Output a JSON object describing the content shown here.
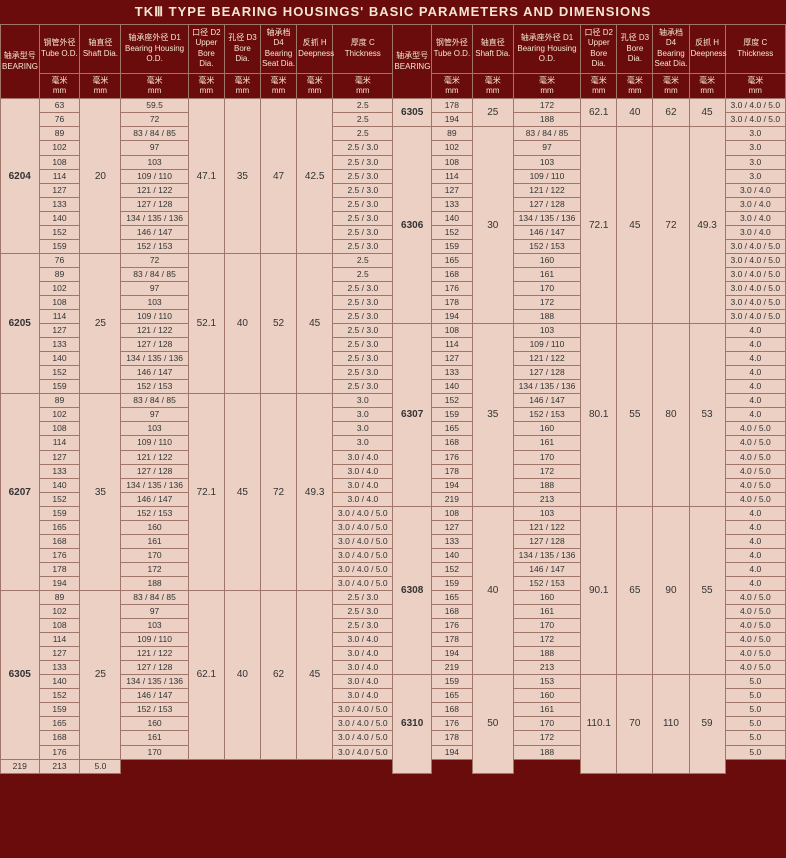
{
  "title": "TKⅢ TYPE BEARING HOUSINGS' BASIC PARAMETERS AND DIMENSIONS",
  "headers": [
    {
      "zh": "轴承型号",
      "en": "BEARING",
      "unit": ""
    },
    {
      "zh": "钢管外径",
      "en": "Tube O.D.",
      "unit": "毫米\nmm"
    },
    {
      "zh": "轴直径",
      "en": "Shaft Dia.",
      "unit": "毫米\nmm"
    },
    {
      "zh": "轴承座外径 D1",
      "en": "Bearing Housing O.D.",
      "unit": "毫米\nmm"
    },
    {
      "zh": "口径 D2",
      "en": "Upper Bore Dia.",
      "unit": "毫米\nmm"
    },
    {
      "zh": "孔径 D3",
      "en": "Bore Dia.",
      "unit": "毫米\nmm"
    },
    {
      "zh": "轴承档 D4",
      "en": "Bearing Seat Dia.",
      "unit": "毫米\nmm"
    },
    {
      "zh": "反抓 H",
      "en": "Deepness",
      "unit": "毫米\nmm"
    },
    {
      "zh": "厚度 C",
      "en": "Thickness",
      "unit": "毫米\nmm"
    }
  ],
  "left": [
    {
      "bearing": "6204",
      "shaft": "20",
      "d2": "47.1",
      "d3": "35",
      "d4": "47",
      "h": "42.5",
      "rows": [
        {
          "tube": "63",
          "d1": "59.5",
          "c": "2.5"
        },
        {
          "tube": "76",
          "d1": "72",
          "c": "2.5"
        },
        {
          "tube": "89",
          "d1": "83 / 84 / 85",
          "c": "2.5"
        },
        {
          "tube": "102",
          "d1": "97",
          "c": "2.5 / 3.0"
        },
        {
          "tube": "108",
          "d1": "103",
          "c": "2.5 / 3.0"
        },
        {
          "tube": "114",
          "d1": "109 / 110",
          "c": "2.5 / 3.0"
        },
        {
          "tube": "127",
          "d1": "121 / 122",
          "c": "2.5 / 3.0"
        },
        {
          "tube": "133",
          "d1": "127 / 128",
          "c": "2.5 / 3.0"
        },
        {
          "tube": "140",
          "d1": "134 / 135 / 136",
          "c": "2.5 / 3.0"
        },
        {
          "tube": "152",
          "d1": "146 / 147",
          "c": "2.5 / 3.0"
        },
        {
          "tube": "159",
          "d1": "152 / 153",
          "c": "2.5 / 3.0"
        }
      ]
    },
    {
      "bearing": "6205",
      "shaft": "25",
      "d2": "52.1",
      "d3": "40",
      "d4": "52",
      "h": "45",
      "rows": [
        {
          "tube": "76",
          "d1": "72",
          "c": "2.5"
        },
        {
          "tube": "89",
          "d1": "83 / 84 / 85",
          "c": "2.5"
        },
        {
          "tube": "102",
          "d1": "97",
          "c": "2.5 / 3.0"
        },
        {
          "tube": "108",
          "d1": "103",
          "c": "2.5 / 3.0"
        },
        {
          "tube": "114",
          "d1": "109 / 110",
          "c": "2.5 / 3.0"
        },
        {
          "tube": "127",
          "d1": "121 / 122",
          "c": "2.5 / 3.0"
        },
        {
          "tube": "133",
          "d1": "127 / 128",
          "c": "2.5 / 3.0"
        },
        {
          "tube": "140",
          "d1": "134 / 135 / 136",
          "c": "2.5 / 3.0"
        },
        {
          "tube": "152",
          "d1": "146 / 147",
          "c": "2.5 / 3.0"
        },
        {
          "tube": "159",
          "d1": "152 / 153",
          "c": "2.5 / 3.0"
        }
      ]
    },
    {
      "bearing": "6207",
      "shaft": "35",
      "d2": "72.1",
      "d3": "45",
      "d4": "72",
      "h": "49.3",
      "rows": [
        {
          "tube": "89",
          "d1": "83 / 84 / 85",
          "c": "3.0"
        },
        {
          "tube": "102",
          "d1": "97",
          "c": "3.0"
        },
        {
          "tube": "108",
          "d1": "103",
          "c": "3.0"
        },
        {
          "tube": "114",
          "d1": "109 / 110",
          "c": "3.0"
        },
        {
          "tube": "127",
          "d1": "121 / 122",
          "c": "3.0 / 4.0"
        },
        {
          "tube": "133",
          "d1": "127 / 128",
          "c": "3.0 / 4.0"
        },
        {
          "tube": "140",
          "d1": "134 / 135 / 136",
          "c": "3.0 / 4.0"
        },
        {
          "tube": "152",
          "d1": "146 / 147",
          "c": "3.0 / 4.0"
        },
        {
          "tube": "159",
          "d1": "152 / 153",
          "c": "3.0 / 4.0 / 5.0"
        },
        {
          "tube": "165",
          "d1": "160",
          "c": "3.0 / 4.0 / 5.0"
        },
        {
          "tube": "168",
          "d1": "161",
          "c": "3.0 / 4.0 / 5.0"
        },
        {
          "tube": "176",
          "d1": "170",
          "c": "3.0 / 4.0 / 5.0"
        },
        {
          "tube": "178",
          "d1": "172",
          "c": "3.0 / 4.0 / 5.0"
        },
        {
          "tube": "194",
          "d1": "188",
          "c": "3.0 / 4.0 / 5.0"
        }
      ]
    },
    {
      "bearing": "6305",
      "shaft": "25",
      "d2": "62.1",
      "d3": "40",
      "d4": "62",
      "h": "45",
      "rows": [
        {
          "tube": "89",
          "d1": "83 / 84 / 85",
          "c": "2.5 / 3.0"
        },
        {
          "tube": "102",
          "d1": "97",
          "c": "2.5 / 3.0"
        },
        {
          "tube": "108",
          "d1": "103",
          "c": "2.5 / 3.0"
        },
        {
          "tube": "114",
          "d1": "109 / 110",
          "c": "3.0 / 4.0"
        },
        {
          "tube": "127",
          "d1": "121 / 122",
          "c": "3.0 / 4.0"
        },
        {
          "tube": "133",
          "d1": "127 / 128",
          "c": "3.0 / 4.0"
        },
        {
          "tube": "140",
          "d1": "134 / 135 / 136",
          "c": "3.0 / 4.0"
        },
        {
          "tube": "152",
          "d1": "146 / 147",
          "c": "3.0 / 4.0"
        },
        {
          "tube": "159",
          "d1": "152 / 153",
          "c": "3.0 / 4.0 / 5.0"
        },
        {
          "tube": "165",
          "d1": "160",
          "c": "3.0 / 4.0 / 5.0"
        },
        {
          "tube": "168",
          "d1": "161",
          "c": "3.0 / 4.0 / 5.0"
        },
        {
          "tube": "176",
          "d1": "170",
          "c": "3.0 / 4.0 / 5.0"
        }
      ]
    }
  ],
  "right": [
    {
      "bearing": "6305",
      "shaft": "25",
      "d2": "62.1",
      "d3": "40",
      "d4": "62",
      "h": "45",
      "rows": [
        {
          "tube": "178",
          "d1": "172",
          "c": "3.0 / 4.0 / 5.0"
        },
        {
          "tube": "194",
          "d1": "188",
          "c": "3.0 / 4.0 / 5.0"
        }
      ]
    },
    {
      "bearing": "6306",
      "shaft": "30",
      "d2": "72.1",
      "d3": "45",
      "d4": "72",
      "h": "49.3",
      "rows": [
        {
          "tube": "89",
          "d1": "83 / 84 / 85",
          "c": "3.0"
        },
        {
          "tube": "102",
          "d1": "97",
          "c": "3.0"
        },
        {
          "tube": "108",
          "d1": "103",
          "c": "3.0"
        },
        {
          "tube": "114",
          "d1": "109 / 110",
          "c": "3.0"
        },
        {
          "tube": "127",
          "d1": "121 / 122",
          "c": "3.0 / 4.0"
        },
        {
          "tube": "133",
          "d1": "127 / 128",
          "c": "3.0 / 4.0"
        },
        {
          "tube": "140",
          "d1": "134 / 135 / 136",
          "c": "3.0 / 4.0"
        },
        {
          "tube": "152",
          "d1": "146 / 147",
          "c": "3.0 / 4.0"
        },
        {
          "tube": "159",
          "d1": "152 / 153",
          "c": "3.0 / 4.0 / 5.0"
        },
        {
          "tube": "165",
          "d1": "160",
          "c": "3.0 / 4.0 / 5.0"
        },
        {
          "tube": "168",
          "d1": "161",
          "c": "3.0 / 4.0 / 5.0"
        },
        {
          "tube": "176",
          "d1": "170",
          "c": "3.0 / 4.0 / 5.0"
        },
        {
          "tube": "178",
          "d1": "172",
          "c": "3.0 / 4.0 / 5.0"
        },
        {
          "tube": "194",
          "d1": "188",
          "c": "3.0 / 4.0 / 5.0"
        }
      ]
    },
    {
      "bearing": "6307",
      "shaft": "35",
      "d2": "80.1",
      "d3": "55",
      "d4": "80",
      "h": "53",
      "rows": [
        {
          "tube": "108",
          "d1": "103",
          "c": "4.0"
        },
        {
          "tube": "114",
          "d1": "109 / 110",
          "c": "4.0"
        },
        {
          "tube": "127",
          "d1": "121 / 122",
          "c": "4.0"
        },
        {
          "tube": "133",
          "d1": "127 / 128",
          "c": "4.0"
        },
        {
          "tube": "140",
          "d1": "134 / 135 / 136",
          "c": "4.0"
        },
        {
          "tube": "152",
          "d1": "146 / 147",
          "c": "4.0"
        },
        {
          "tube": "159",
          "d1": "152 / 153",
          "c": "4.0"
        },
        {
          "tube": "165",
          "d1": "160",
          "c": "4.0 / 5.0"
        },
        {
          "tube": "168",
          "d1": "161",
          "c": "4.0 / 5.0"
        },
        {
          "tube": "176",
          "d1": "170",
          "c": "4.0 / 5.0"
        },
        {
          "tube": "178",
          "d1": "172",
          "c": "4.0 / 5.0"
        },
        {
          "tube": "194",
          "d1": "188",
          "c": "4.0 / 5.0"
        },
        {
          "tube": "219",
          "d1": "213",
          "c": "4.0 / 5.0"
        }
      ]
    },
    {
      "bearing": "6308",
      "shaft": "40",
      "d2": "90.1",
      "d3": "65",
      "d4": "90",
      "h": "55",
      "rows": [
        {
          "tube": "108",
          "d1": "103",
          "c": "4.0"
        },
        {
          "tube": "127",
          "d1": "121 / 122",
          "c": "4.0"
        },
        {
          "tube": "133",
          "d1": "127 / 128",
          "c": "4.0"
        },
        {
          "tube": "140",
          "d1": "134 / 135 / 136",
          "c": "4.0"
        },
        {
          "tube": "152",
          "d1": "146 / 147",
          "c": "4.0"
        },
        {
          "tube": "159",
          "d1": "152 / 153",
          "c": "4.0"
        },
        {
          "tube": "165",
          "d1": "160",
          "c": "4.0 / 5.0"
        },
        {
          "tube": "168",
          "d1": "161",
          "c": "4.0 / 5.0"
        },
        {
          "tube": "176",
          "d1": "170",
          "c": "4.0 / 5.0"
        },
        {
          "tube": "178",
          "d1": "172",
          "c": "4.0 / 5.0"
        },
        {
          "tube": "194",
          "d1": "188",
          "c": "4.0 / 5.0"
        },
        {
          "tube": "219",
          "d1": "213",
          "c": "4.0 / 5.0"
        }
      ]
    },
    {
      "bearing": "6310",
      "shaft": "50",
      "d2": "110.1",
      "d3": "70",
      "d4": "110",
      "h": "59",
      "rows": [
        {
          "tube": "159",
          "d1": "153",
          "c": "5.0"
        },
        {
          "tube": "165",
          "d1": "160",
          "c": "5.0"
        },
        {
          "tube": "168",
          "d1": "161",
          "c": "5.0"
        },
        {
          "tube": "176",
          "d1": "170",
          "c": "5.0"
        },
        {
          "tube": "178",
          "d1": "172",
          "c": "5.0"
        },
        {
          "tube": "194",
          "d1": "188",
          "c": "5.0"
        },
        {
          "tube": "219",
          "d1": "213",
          "c": "5.0"
        }
      ]
    }
  ]
}
